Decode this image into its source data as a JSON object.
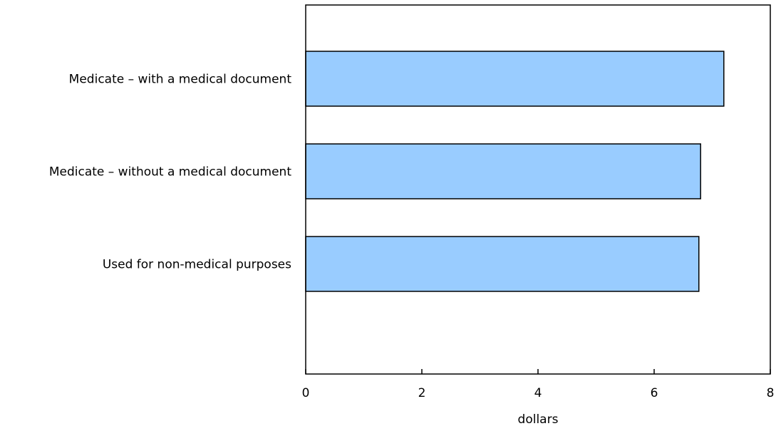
{
  "chart_data": {
    "type": "bar",
    "orientation": "horizontal",
    "categories": [
      "Medicate – with a medical document",
      "Medicate – without a medical document",
      "Used for non-medical purposes"
    ],
    "values": [
      7.2,
      6.8,
      6.77
    ],
    "xlabel": "dollars",
    "ylabel": "",
    "xlim": [
      0,
      8
    ],
    "xticks": [
      0,
      2,
      4,
      6,
      8
    ],
    "grid": false,
    "bar_color": "#99ccff",
    "bar_stroke": "#000000"
  }
}
